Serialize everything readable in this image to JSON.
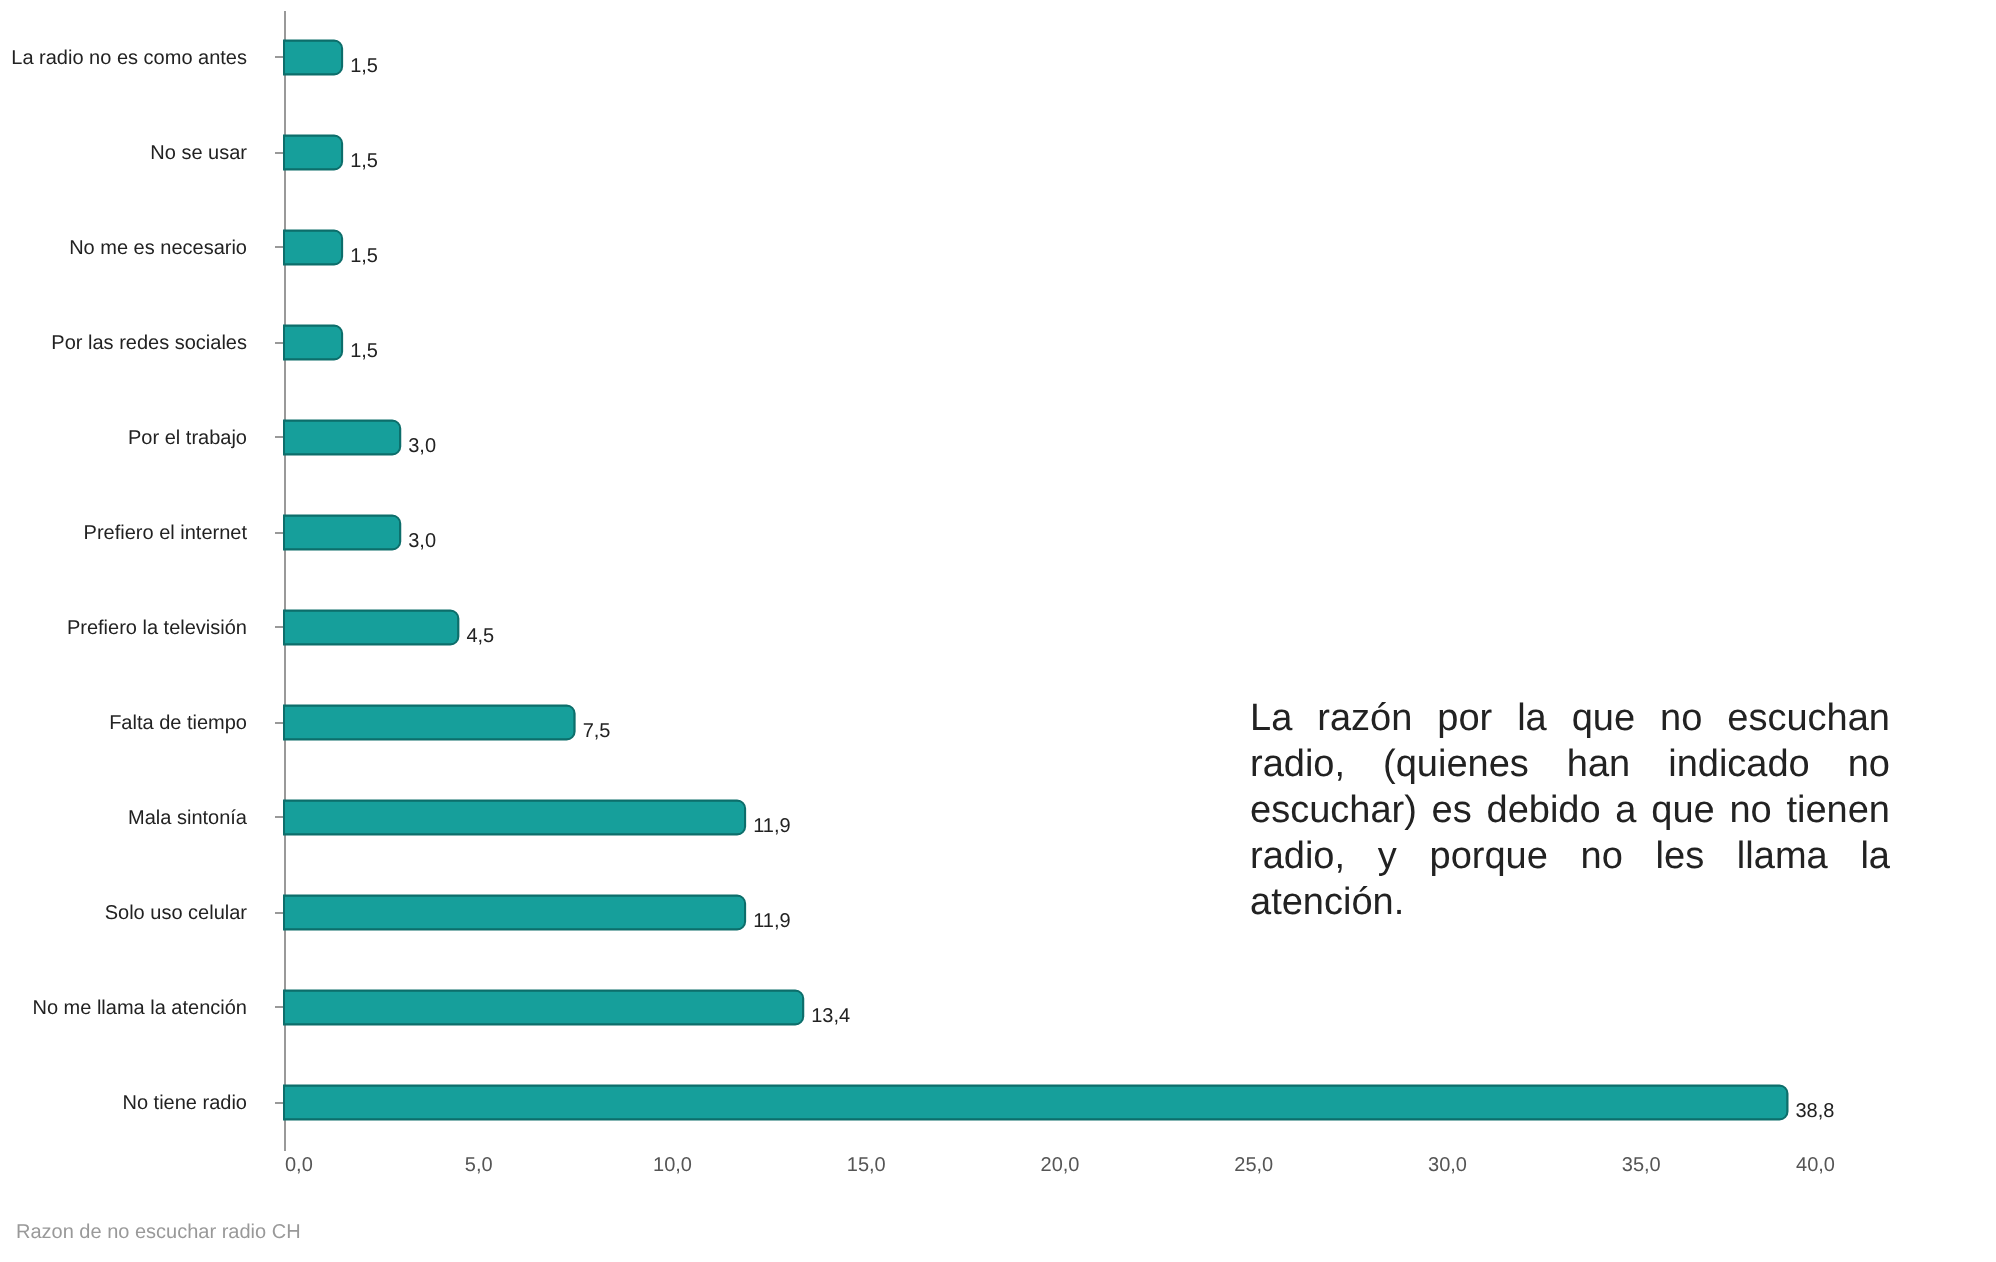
{
  "chart_data": {
    "type": "bar",
    "orientation": "horizontal",
    "categories": [
      "La radio no es como antes",
      "No se usar",
      "No me es necesario",
      "Por las redes sociales",
      "Por el trabajo",
      "Prefiero el internet",
      "Prefiero la televisión",
      "Falta de tiempo",
      "Mala sintonía",
      "Solo uso celular",
      "No me llama la atención",
      "No tiene radio"
    ],
    "values": [
      1.5,
      1.5,
      1.5,
      1.5,
      3.0,
      3.0,
      4.5,
      7.5,
      11.9,
      11.9,
      13.4,
      38.8
    ],
    "value_labels": [
      "1,5",
      "1,5",
      "1,5",
      "1,5",
      "3,0",
      "3,0",
      "4,5",
      "7,5",
      "11,9",
      "11,9",
      "13,4",
      "38,8"
    ],
    "color": "#169f9b",
    "xlim": [
      0,
      40
    ],
    "xticks": [
      {
        "value": 0,
        "label": "0,0"
      },
      {
        "value": 5,
        "label": "5,0"
      },
      {
        "value": 10,
        "label": "10,0"
      },
      {
        "value": 15,
        "label": "15,0"
      },
      {
        "value": 20,
        "label": "20,0"
      },
      {
        "value": 25,
        "label": "25,0"
      },
      {
        "value": 30,
        "label": "30,0"
      },
      {
        "value": 35,
        "label": "35,0"
      },
      {
        "value": 40,
        "label": "40,0"
      }
    ],
    "grid": false,
    "annotations": [
      "La razón por la que no escuchan radio, (quienes han indicado no escuchar) es debido a que no tienen radio, y porque no les llama la atención.",
      "Razon de no escuchar radio CH"
    ]
  }
}
